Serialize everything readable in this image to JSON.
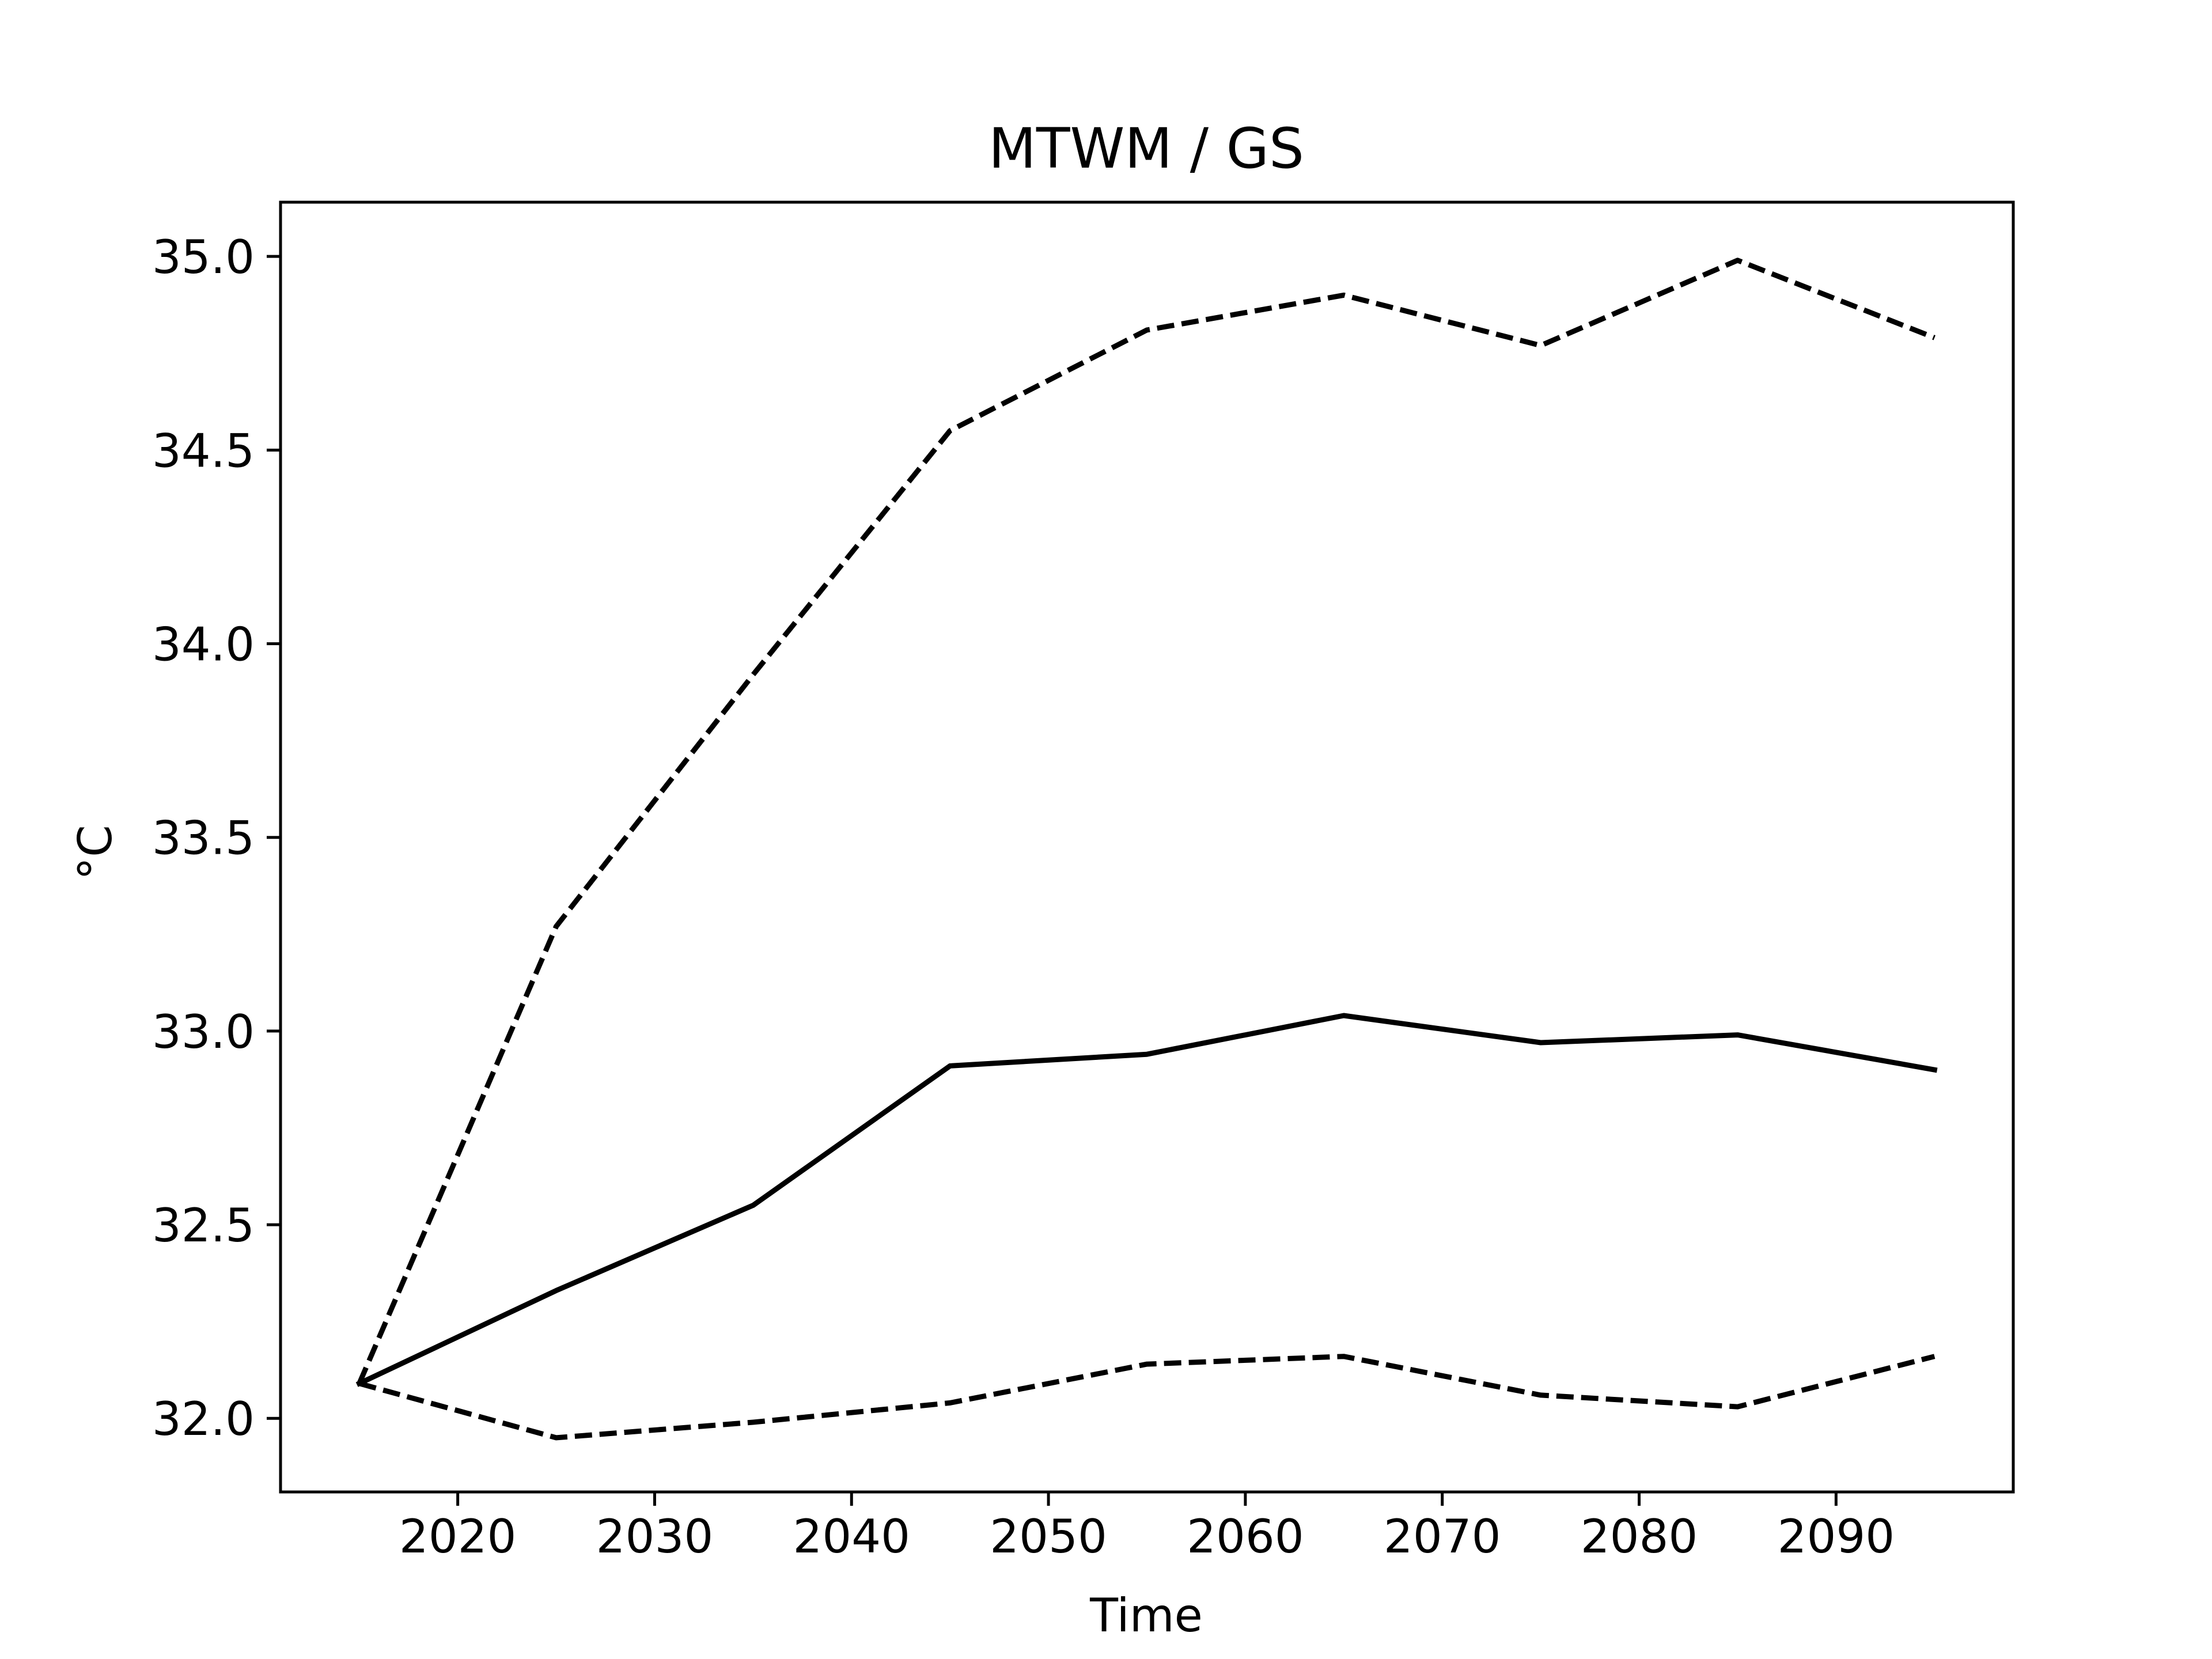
{
  "chart_data": {
    "type": "line",
    "title": "MTWM / GS",
    "xlabel": "Time",
    "ylabel": "°C",
    "x": [
      2015,
      2025,
      2035,
      2045,
      2055,
      2065,
      2075,
      2085,
      2095
    ],
    "xlim": [
      2011,
      2099
    ],
    "ylim": [
      31.81,
      35.14
    ],
    "xticks": [
      2020,
      2030,
      2040,
      2050,
      2060,
      2070,
      2080,
      2090
    ],
    "yticks": [
      32.0,
      32.5,
      33.0,
      33.5,
      34.0,
      34.5,
      35.0
    ],
    "xtick_labels": [
      "2020",
      "2030",
      "2040",
      "2050",
      "2060",
      "2070",
      "2080",
      "2090"
    ],
    "ytick_labels": [
      "32.0",
      "32.5",
      "33.0",
      "33.5",
      "34.0",
      "34.5",
      "35.0"
    ],
    "grid": false,
    "legend": "none",
    "series": [
      {
        "style": "solid",
        "color": "#000000",
        "values": [
          32.09,
          32.33,
          32.55,
          32.91,
          32.94,
          33.04,
          32.97,
          32.99,
          32.9
        ]
      },
      {
        "style": "dashed",
        "color": "#000000",
        "values": [
          32.09,
          33.27,
          33.92,
          34.55,
          34.81,
          34.9,
          34.77,
          34.99,
          34.79
        ]
      },
      {
        "style": "dashed",
        "color": "#000000",
        "values": [
          32.09,
          31.95,
          31.99,
          32.04,
          32.14,
          32.16,
          32.06,
          32.03,
          32.16
        ]
      }
    ]
  }
}
